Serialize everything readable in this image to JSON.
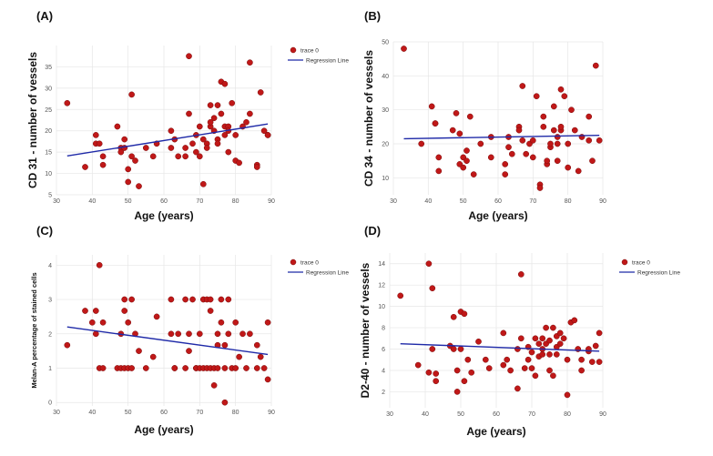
{
  "figure": {
    "panels": [
      {
        "label": "(A)"
      },
      {
        "label": "(B)"
      },
      {
        "label": "(C)"
      },
      {
        "label": "(D)"
      }
    ]
  },
  "chart_data": [
    {
      "type": "scatter",
      "panel": "(A)",
      "xlabel": "Age (years)",
      "ylabel": "CD 31 - number of vessels",
      "xlim": [
        30,
        90
      ],
      "ylim": [
        5,
        40
      ],
      "xticks": [
        30,
        40,
        50,
        60,
        70,
        80,
        90
      ],
      "yticks": [
        5,
        10,
        15,
        20,
        25,
        30,
        35
      ],
      "legend": {
        "position": "top-right",
        "entries": [
          "trace 0",
          "Regression Line"
        ]
      },
      "series": [
        {
          "name": "trace 0",
          "x": [
            33,
            38,
            41,
            41,
            42,
            43,
            43,
            47,
            48,
            48,
            49,
            49,
            50,
            50,
            51,
            51,
            52,
            53,
            55,
            57,
            58,
            62,
            62,
            63,
            64,
            66,
            66,
            67,
            67,
            68,
            69,
            69,
            70,
            70,
            71,
            71,
            72,
            72,
            73,
            73,
            73,
            74,
            74,
            75,
            75,
            75,
            76,
            76,
            77,
            77,
            77,
            78,
            78,
            78,
            79,
            80,
            80,
            81,
            82,
            83,
            84,
            84,
            86,
            86,
            87,
            88,
            89,
            89
          ],
          "y": [
            26.5,
            11.5,
            17,
            19,
            17,
            14,
            12,
            21,
            16,
            15,
            16,
            18,
            11,
            8,
            14,
            28.5,
            13,
            7,
            16,
            14,
            17,
            16,
            20,
            18,
            14,
            14,
            16,
            37.5,
            24,
            17,
            15,
            19,
            14,
            21,
            18,
            7.5,
            17,
            16,
            21,
            22,
            26,
            23,
            20,
            18,
            17,
            26,
            31.5,
            24,
            31,
            21,
            19,
            21,
            15,
            20,
            26.5,
            19,
            13,
            12.5,
            21,
            22,
            24,
            36,
            12,
            11.5,
            29,
            20,
            19,
            19
          ]
        },
        {
          "name": "Regression Line",
          "x": [
            33,
            89
          ],
          "y": [
            14.1,
            21.6
          ]
        }
      ]
    },
    {
      "type": "scatter",
      "panel": "(B)",
      "xlabel": "Age (years)",
      "ylabel": "CD 34 - number of vessels",
      "xlim": [
        30,
        90
      ],
      "ylim": [
        5,
        50
      ],
      "xticks": [
        30,
        40,
        50,
        60,
        70,
        80,
        90
      ],
      "yticks": [
        10,
        20,
        30,
        40,
        50
      ],
      "legend": {
        "position": "top-right",
        "entries": []
      },
      "series": [
        {
          "name": "trace 0",
          "x": [
            33,
            38,
            41,
            42,
            42,
            43,
            43,
            47,
            48,
            49,
            49,
            50,
            50,
            51,
            51,
            52,
            53,
            55,
            58,
            58,
            62,
            62,
            63,
            63,
            64,
            66,
            66,
            67,
            67,
            68,
            69,
            70,
            70,
            71,
            72,
            72,
            73,
            73,
            74,
            74,
            75,
            75,
            76,
            76,
            77,
            77,
            77,
            78,
            78,
            78,
            79,
            80,
            80,
            81,
            82,
            83,
            84,
            86,
            86,
            87,
            88,
            89
          ],
          "y": [
            48,
            20,
            31,
            26,
            26,
            12,
            16,
            24,
            29,
            23,
            14,
            16,
            13,
            15,
            18,
            28,
            11,
            20,
            22,
            16,
            14,
            11,
            22,
            19,
            17,
            25,
            24,
            37,
            21,
            17,
            20,
            21,
            16,
            34,
            8,
            7,
            25,
            28,
            14,
            15,
            19,
            20,
            31,
            24,
            15,
            22,
            20,
            24,
            25,
            36,
            34,
            20,
            13,
            30,
            24,
            12,
            22,
            21,
            28,
            15,
            43,
            21
          ]
        },
        {
          "name": "Regression Line",
          "x": [
            33,
            89
          ],
          "y": [
            21.5,
            22.5
          ]
        }
      ]
    },
    {
      "type": "scatter",
      "panel": "(C)",
      "xlabel": "Age (years)",
      "ylabel": "Melan-A percentage of stained cells",
      "xlim": [
        30,
        90
      ],
      "ylim": [
        -0.1,
        4.3
      ],
      "xticks": [
        30,
        40,
        50,
        60,
        70,
        80,
        90
      ],
      "yticks": [
        0,
        1,
        2,
        3,
        4
      ],
      "legend": {
        "position": "top-right",
        "entries": [
          "trace 0",
          "Regression Line"
        ]
      },
      "series": [
        {
          "name": "trace 0",
          "x": [
            33,
            38,
            40,
            41,
            41,
            42,
            42,
            43,
            43,
            47,
            48,
            48,
            49,
            49,
            49,
            50,
            50,
            51,
            51,
            52,
            53,
            55,
            57,
            58,
            62,
            62,
            63,
            63,
            64,
            66,
            66,
            67,
            67,
            68,
            69,
            69,
            70,
            70,
            71,
            71,
            72,
            72,
            73,
            73,
            73,
            74,
            74,
            75,
            75,
            75,
            76,
            76,
            77,
            77,
            77,
            78,
            78,
            79,
            80,
            80,
            81,
            82,
            83,
            84,
            86,
            86,
            87,
            88,
            89,
            89
          ],
          "y": [
            1.67,
            2.67,
            2.33,
            2,
            2.67,
            4,
            1,
            2.33,
            1,
            1,
            2,
            1,
            1,
            2.67,
            3,
            1,
            2.33,
            3,
            1,
            2,
            1.5,
            1,
            1.33,
            2.5,
            2,
            3,
            1,
            1,
            2,
            3,
            1,
            2,
            1.5,
            3,
            1,
            1,
            2,
            1,
            3,
            1,
            3,
            1,
            1,
            2.67,
            3,
            1,
            0.5,
            1,
            1.67,
            2,
            3,
            2.33,
            0,
            1.67,
            1,
            2,
            3,
            1,
            2.33,
            1,
            1.33,
            2,
            1,
            2,
            1.67,
            1,
            1.33,
            1,
            0.67,
            2.33
          ]
        },
        {
          "name": "Regression Line",
          "x": [
            33,
            89
          ],
          "y": [
            2.2,
            1.4
          ]
        }
      ]
    },
    {
      "type": "scatter",
      "panel": "(D)",
      "xlabel": "Age (years)",
      "ylabel": "D2-40 - number of vessels",
      "xlim": [
        30,
        90
      ],
      "ylim": [
        0.5,
        15
      ],
      "xticks": [
        30,
        40,
        50,
        60,
        70,
        80,
        90
      ],
      "yticks": [
        2,
        4,
        6,
        8,
        10,
        12,
        14
      ],
      "legend": {
        "position": "top-right",
        "entries": [
          "trace 0",
          "Regression Line"
        ]
      },
      "series": [
        {
          "name": "trace 0",
          "x": [
            33,
            38,
            41,
            41,
            42,
            42,
            43,
            43,
            47,
            48,
            48,
            49,
            49,
            50,
            50,
            51,
            51,
            52,
            53,
            55,
            57,
            58,
            62,
            62,
            63,
            64,
            66,
            66,
            67,
            67,
            68,
            69,
            69,
            70,
            70,
            71,
            71,
            72,
            72,
            73,
            73,
            73,
            74,
            74,
            75,
            75,
            75,
            76,
            76,
            77,
            77,
            77,
            78,
            78,
            79,
            80,
            80,
            81,
            82,
            83,
            84,
            84,
            86,
            86,
            87,
            88,
            89,
            89
          ],
          "y": [
            11,
            4.5,
            14,
            3.8,
            11.7,
            6,
            3.7,
            3,
            6.3,
            9,
            6,
            2,
            4,
            9.5,
            6,
            9.3,
            3,
            5,
            3.8,
            6.7,
            5,
            4.2,
            7.5,
            4.5,
            5,
            4,
            2.3,
            6,
            13,
            7,
            4.2,
            6.2,
            5,
            4.2,
            5.7,
            7,
            3.5,
            6.5,
            5.3,
            6,
            7,
            5.5,
            8,
            6.5,
            4,
            5.5,
            6.8,
            8,
            3.5,
            7.2,
            6.2,
            5.5,
            6.5,
            7.5,
            7,
            1.7,
            5,
            8.5,
            8.7,
            6,
            5,
            4,
            5.8,
            6,
            4.8,
            6.3,
            7.5,
            4.8
          ]
        },
        {
          "name": "Regression Line",
          "x": [
            33,
            89
          ],
          "y": [
            6.5,
            5.8
          ]
        }
      ]
    }
  ]
}
